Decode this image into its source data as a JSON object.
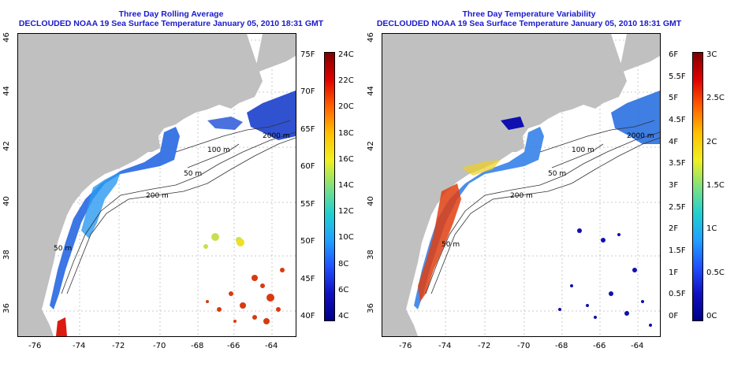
{
  "left": {
    "title": "Three Day Rolling Average",
    "subtitle": "DECLOUDED NOAA 19 Sea Surface Temperature January 05, 2010 18:31 GMT",
    "colorbar_left": [
      "75F",
      "70F",
      "65F",
      "60F",
      "55F",
      "50F",
      "45F",
      "40F"
    ],
    "colorbar_right": [
      "24C",
      "22C",
      "20C",
      "18C",
      "16C",
      "14C",
      "12C",
      "10C",
      "8C",
      "6C",
      "4C"
    ]
  },
  "right": {
    "title": "Three Day Temperature Variability",
    "subtitle": "DECLOUDED NOAA 19 Sea Surface Temperature January 05, 2010 18:31 GMT",
    "colorbar_left": [
      "6F",
      "5.5F",
      "5F",
      "4.5F",
      "4F",
      "3.5F",
      "3F",
      "2.5F",
      "2F",
      "1.5F",
      "1F",
      "0.5F",
      "0F"
    ],
    "colorbar_right": [
      "3C",
      "2.5C",
      "2C",
      "1.5C",
      "1C",
      "0.5C",
      "0C"
    ]
  },
  "x_ticks": [
    "-76",
    "-74",
    "-72",
    "-70",
    "-68",
    "-66",
    "-64"
  ],
  "y_ticks": [
    "46",
    "44",
    "42",
    "40",
    "38",
    "36"
  ],
  "contour_labels": [
    "200 m",
    "2000 m",
    "100 m",
    "50 m",
    "50 m",
    "200 m",
    "2000 m",
    "100 m",
    "50 m",
    "50 m"
  ],
  "colors": {
    "title": "#1a1acc",
    "land": "#c0c0c0",
    "ocean": "#ffffff",
    "cold": "#1a1acc",
    "warm": "#cc2200"
  }
}
